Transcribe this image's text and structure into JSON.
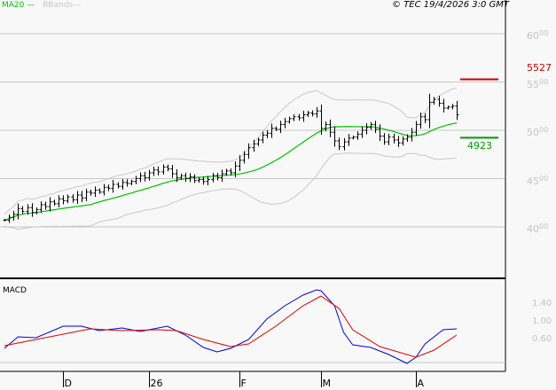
{
  "header": {
    "legend": [
      {
        "label": "MA20",
        "color": "#00c000"
      },
      {
        "label": "BBands",
        "color": "#c8c8c8"
      }
    ],
    "copyright": "© TEC 19/4/2026 3:0 GMT"
  },
  "chart_data": [
    {
      "type": "bar",
      "subtype": "ohlc",
      "grid": true,
      "y_ticks": [
        {
          "int": "60",
          "dec": "00",
          "value": 60
        },
        {
          "int": "55",
          "dec": "00",
          "value": 55
        },
        {
          "int": "50",
          "dec": "00",
          "value": 50
        },
        {
          "int": "45",
          "dec": "00",
          "value": 45
        },
        {
          "int": "40",
          "dec": "00",
          "value": 40
        }
      ],
      "x_ticks": [
        {
          "label": "D",
          "day": 13
        },
        {
          "label": "26",
          "day": 32
        },
        {
          "label": "F",
          "day": 52
        },
        {
          "label": "M",
          "day": 70
        },
        {
          "label": "A",
          "day": 91
        }
      ],
      "closes": [
        40.7,
        41.0,
        41.3,
        41.9,
        41.6,
        42.0,
        41.5,
        41.8,
        42.3,
        42.1,
        42.6,
        42.4,
        42.9,
        42.7,
        43.1,
        42.8,
        43.3,
        43.0,
        43.6,
        43.5,
        43.8,
        43.6,
        44.1,
        44.0,
        44.4,
        44.2,
        44.6,
        44.5,
        44.7,
        45.0,
        45.3,
        45.1,
        45.6,
        45.9,
        45.7,
        46.2,
        46.0,
        45.5,
        45.1,
        45.3,
        45.0,
        45.2,
        44.8,
        44.9,
        44.7,
        44.9,
        45.3,
        45.1,
        45.5,
        45.8,
        45.6,
        46.3,
        46.9,
        47.5,
        48.2,
        48.6,
        49.0,
        49.5,
        49.7,
        50.2,
        50.1,
        50.6,
        50.9,
        51.2,
        51.4,
        51.3,
        51.6,
        51.8,
        51.7,
        52.0,
        50.2,
        50.6,
        49.8,
        48.9,
        48.3,
        48.8,
        49.2,
        49.3,
        49.6,
        50.0,
        50.3,
        50.6,
        50.1,
        49.4,
        48.8,
        49.3,
        49.0,
        48.7,
        49.1,
        49.3,
        49.8,
        50.6,
        51.4,
        51.1,
        52.9,
        53.2,
        52.8,
        52.3,
        52.4,
        52.5,
        51.6
      ],
      "indicators": {
        "ma_period": 20,
        "bbands_period": 20
      },
      "levels": [
        {
          "label": "5527",
          "value": 55.27,
          "color": "#cc0000"
        },
        {
          "label": "4923",
          "value": 49.23,
          "color": "#009900"
        }
      ]
    },
    {
      "type": "line",
      "title": "MACD",
      "y_ticks": [
        {
          "int": "1",
          "dec": "40",
          "value": 1.4
        },
        {
          "int": "1",
          "dec": "00",
          "value": 1.0
        },
        {
          "int": "0",
          "dec": "60",
          "value": 0.6
        }
      ],
      "series": [
        {
          "color": "#0000e0",
          "points": [
            [
              0,
              0.42
            ],
            [
              3,
              0.68
            ],
            [
              7,
              0.66
            ],
            [
              13,
              0.92
            ],
            [
              17,
              0.92
            ],
            [
              21,
              0.82
            ],
            [
              26,
              0.88
            ],
            [
              30,
              0.8
            ],
            [
              36,
              0.92
            ],
            [
              40,
              0.72
            ],
            [
              44,
              0.44
            ],
            [
              47,
              0.34
            ],
            [
              50,
              0.42
            ],
            [
              54,
              0.62
            ],
            [
              58,
              1.08
            ],
            [
              62,
              1.38
            ],
            [
              66,
              1.62
            ],
            [
              69,
              1.74
            ],
            [
              70,
              1.72
            ],
            [
              73,
              1.38
            ],
            [
              75,
              0.78
            ],
            [
              77,
              0.5
            ],
            [
              81,
              0.44
            ],
            [
              85,
              0.28
            ],
            [
              89,
              0.08
            ],
            [
              91,
              0.22
            ],
            [
              93,
              0.52
            ],
            [
              97,
              0.84
            ],
            [
              100,
              0.86
            ]
          ]
        },
        {
          "color": "#e00000",
          "points": [
            [
              0,
              0.48
            ],
            [
              7,
              0.62
            ],
            [
              15,
              0.78
            ],
            [
              19,
              0.86
            ],
            [
              26,
              0.82
            ],
            [
              34,
              0.84
            ],
            [
              38,
              0.82
            ],
            [
              44,
              0.62
            ],
            [
              50,
              0.46
            ],
            [
              54,
              0.52
            ],
            [
              60,
              0.92
            ],
            [
              66,
              1.38
            ],
            [
              70,
              1.6
            ],
            [
              74,
              1.32
            ],
            [
              77,
              0.84
            ],
            [
              83,
              0.46
            ],
            [
              91,
              0.22
            ],
            [
              95,
              0.38
            ],
            [
              100,
              0.72
            ]
          ]
        }
      ]
    }
  ]
}
